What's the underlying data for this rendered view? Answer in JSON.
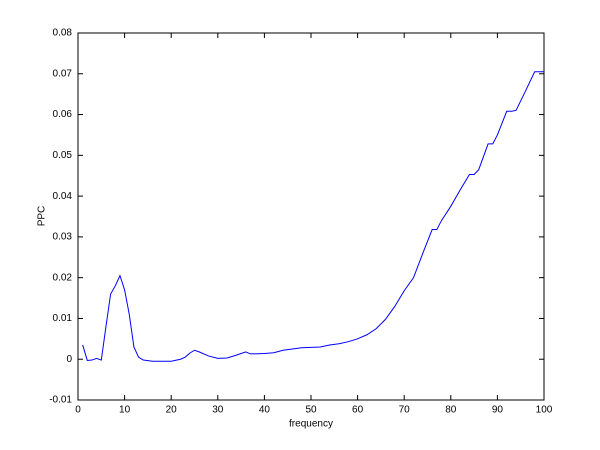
{
  "chart_data": {
    "type": "line",
    "x_label": "frequency",
    "y_label": "PPC",
    "x": [
      1,
      2,
      3,
      4,
      5,
      6,
      7,
      8,
      9,
      10,
      11,
      12,
      13,
      14,
      16,
      18,
      20,
      22,
      23,
      24,
      25,
      26,
      28,
      30,
      32,
      34,
      36,
      37,
      40,
      42,
      44,
      46,
      48,
      50,
      52,
      54,
      56,
      58,
      60,
      62,
      64,
      66,
      68,
      70,
      72,
      74,
      76,
      77,
      78,
      80,
      82,
      84,
      85,
      86,
      88,
      89,
      90,
      92,
      93,
      94,
      96,
      98,
      100
    ],
    "series": [
      {
        "color": "#0000ff",
        "values": [
          0.0035,
          -0.0003,
          -0.0002,
          0.0002,
          -0.0002,
          0.008,
          0.016,
          0.018,
          0.0205,
          0.017,
          0.011,
          0.003,
          0.0005,
          -0.0002,
          -0.0005,
          -0.0005,
          -0.0005,
          0,
          0.0005,
          0.0015,
          0.0022,
          0.0018,
          0.0008,
          0.0002,
          0.0003,
          0.001,
          0.0018,
          0.0013,
          0.0014,
          0.0016,
          0.0022,
          0.0025,
          0.0028,
          0.0029,
          0.003,
          0.0035,
          0.0038,
          0.0043,
          0.005,
          0.006,
          0.0075,
          0.0098,
          0.013,
          0.0168,
          0.02,
          0.026,
          0.0318,
          0.0318,
          0.034,
          0.0375,
          0.0415,
          0.0453,
          0.0453,
          0.0465,
          0.0528,
          0.0528,
          0.055,
          0.0608,
          0.0608,
          0.061,
          0.0657,
          0.0705,
          0.0705
        ]
      }
    ],
    "xlim": [
      0,
      100
    ],
    "xticks": [
      0,
      10,
      20,
      30,
      40,
      50,
      60,
      70,
      80,
      90,
      100
    ],
    "ylim": [
      -0.01,
      0.08
    ],
    "yticks": [
      -0.01,
      0,
      0.01,
      0.02,
      0.03,
      0.04,
      0.05,
      0.06,
      0.07,
      0.08
    ],
    "grid": false
  }
}
